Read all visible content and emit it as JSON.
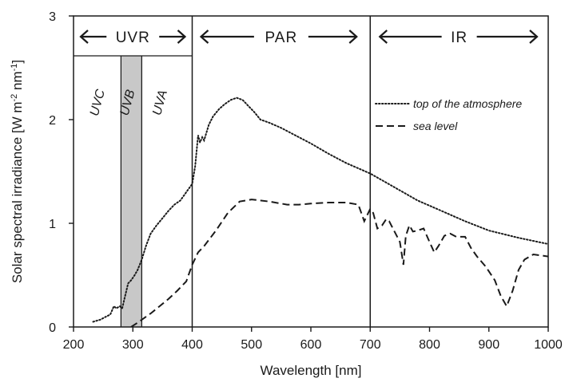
{
  "chart_data": {
    "type": "line",
    "xlabel": "Wavelength [nm]",
    "ylabel": "Solar spectral irradiance [W m",
    "ylabel_sup1": "-2",
    "ylabel_mid": " nm",
    "ylabel_sup2": "-1",
    "ylabel_end": "]",
    "xlim": [
      200,
      1000
    ],
    "ylim": [
      0,
      3
    ],
    "x_ticks": [
      200,
      300,
      400,
      500,
      600,
      700,
      800,
      900,
      1000
    ],
    "y_ticks": [
      0,
      1,
      2,
      3
    ],
    "legend_position": "right-center",
    "grid": false,
    "regions": {
      "UVR": [
        200,
        400
      ],
      "PAR": [
        400,
        700
      ],
      "IR": [
        700,
        1000
      ],
      "UVC": [
        200,
        280
      ],
      "UVB": [
        280,
        315
      ],
      "UVA": [
        315,
        400
      ]
    },
    "bands": [
      {
        "key": "uvr",
        "label": "UVR"
      },
      {
        "key": "par",
        "label": "PAR"
      },
      {
        "key": "ir",
        "label": "IR"
      }
    ],
    "sub_bands": [
      {
        "key": "uvc",
        "label": "UVC"
      },
      {
        "key": "uvb",
        "label": "UVB"
      },
      {
        "key": "uva",
        "label": "UVA"
      }
    ],
    "series": [
      {
        "name": "top of the atmosphere",
        "style": "dotted",
        "x": [
          233,
          245,
          255,
          262,
          268,
          272,
          278,
          282,
          287,
          292,
          297,
          303,
          308,
          315,
          322,
          330,
          340,
          350,
          360,
          370,
          380,
          390,
          400,
          405,
          410,
          413,
          417,
          420,
          428,
          435,
          445,
          455,
          465,
          475,
          485,
          495,
          505,
          515,
          530,
          550,
          570,
          600,
          630,
          660,
          700,
          740,
          780,
          820,
          860,
          900,
          950,
          1000
        ],
        "y": [
          0.05,
          0.07,
          0.1,
          0.12,
          0.2,
          0.18,
          0.2,
          0.18,
          0.3,
          0.42,
          0.45,
          0.5,
          0.55,
          0.65,
          0.78,
          0.9,
          0.98,
          1.05,
          1.12,
          1.18,
          1.22,
          1.3,
          1.38,
          1.55,
          1.85,
          1.78,
          1.83,
          1.8,
          1.95,
          2.03,
          2.1,
          2.15,
          2.19,
          2.21,
          2.19,
          2.13,
          2.07,
          2.0,
          1.97,
          1.92,
          1.86,
          1.77,
          1.67,
          1.58,
          1.48,
          1.35,
          1.22,
          1.12,
          1.02,
          0.93,
          0.86,
          0.8
        ]
      },
      {
        "name": "sea level",
        "style": "dashed",
        "x": [
          297,
          305,
          315,
          330,
          345,
          360,
          375,
          390,
          400,
          410,
          420,
          440,
          460,
          480,
          500,
          530,
          560,
          580,
          600,
          630,
          660,
          680,
          690,
          700,
          705,
          712,
          720,
          727,
          732,
          740,
          750,
          756,
          760,
          766,
          772,
          780,
          790,
          800,
          808,
          815,
          825,
          835,
          845,
          860,
          870,
          880,
          895,
          910,
          920,
          930,
          940,
          950,
          960,
          975,
          1000
        ],
        "y": [
          0.0,
          0.03,
          0.07,
          0.13,
          0.2,
          0.27,
          0.35,
          0.44,
          0.6,
          0.72,
          0.78,
          0.93,
          1.1,
          1.21,
          1.23,
          1.21,
          1.18,
          1.18,
          1.19,
          1.2,
          1.2,
          1.18,
          1.02,
          1.14,
          1.1,
          0.95,
          0.98,
          1.04,
          1.02,
          0.93,
          0.82,
          0.6,
          0.88,
          0.98,
          0.92,
          0.93,
          0.95,
          0.82,
          0.72,
          0.78,
          0.88,
          0.9,
          0.87,
          0.87,
          0.76,
          0.68,
          0.58,
          0.45,
          0.3,
          0.2,
          0.35,
          0.55,
          0.65,
          0.7,
          0.68
        ]
      }
    ]
  }
}
